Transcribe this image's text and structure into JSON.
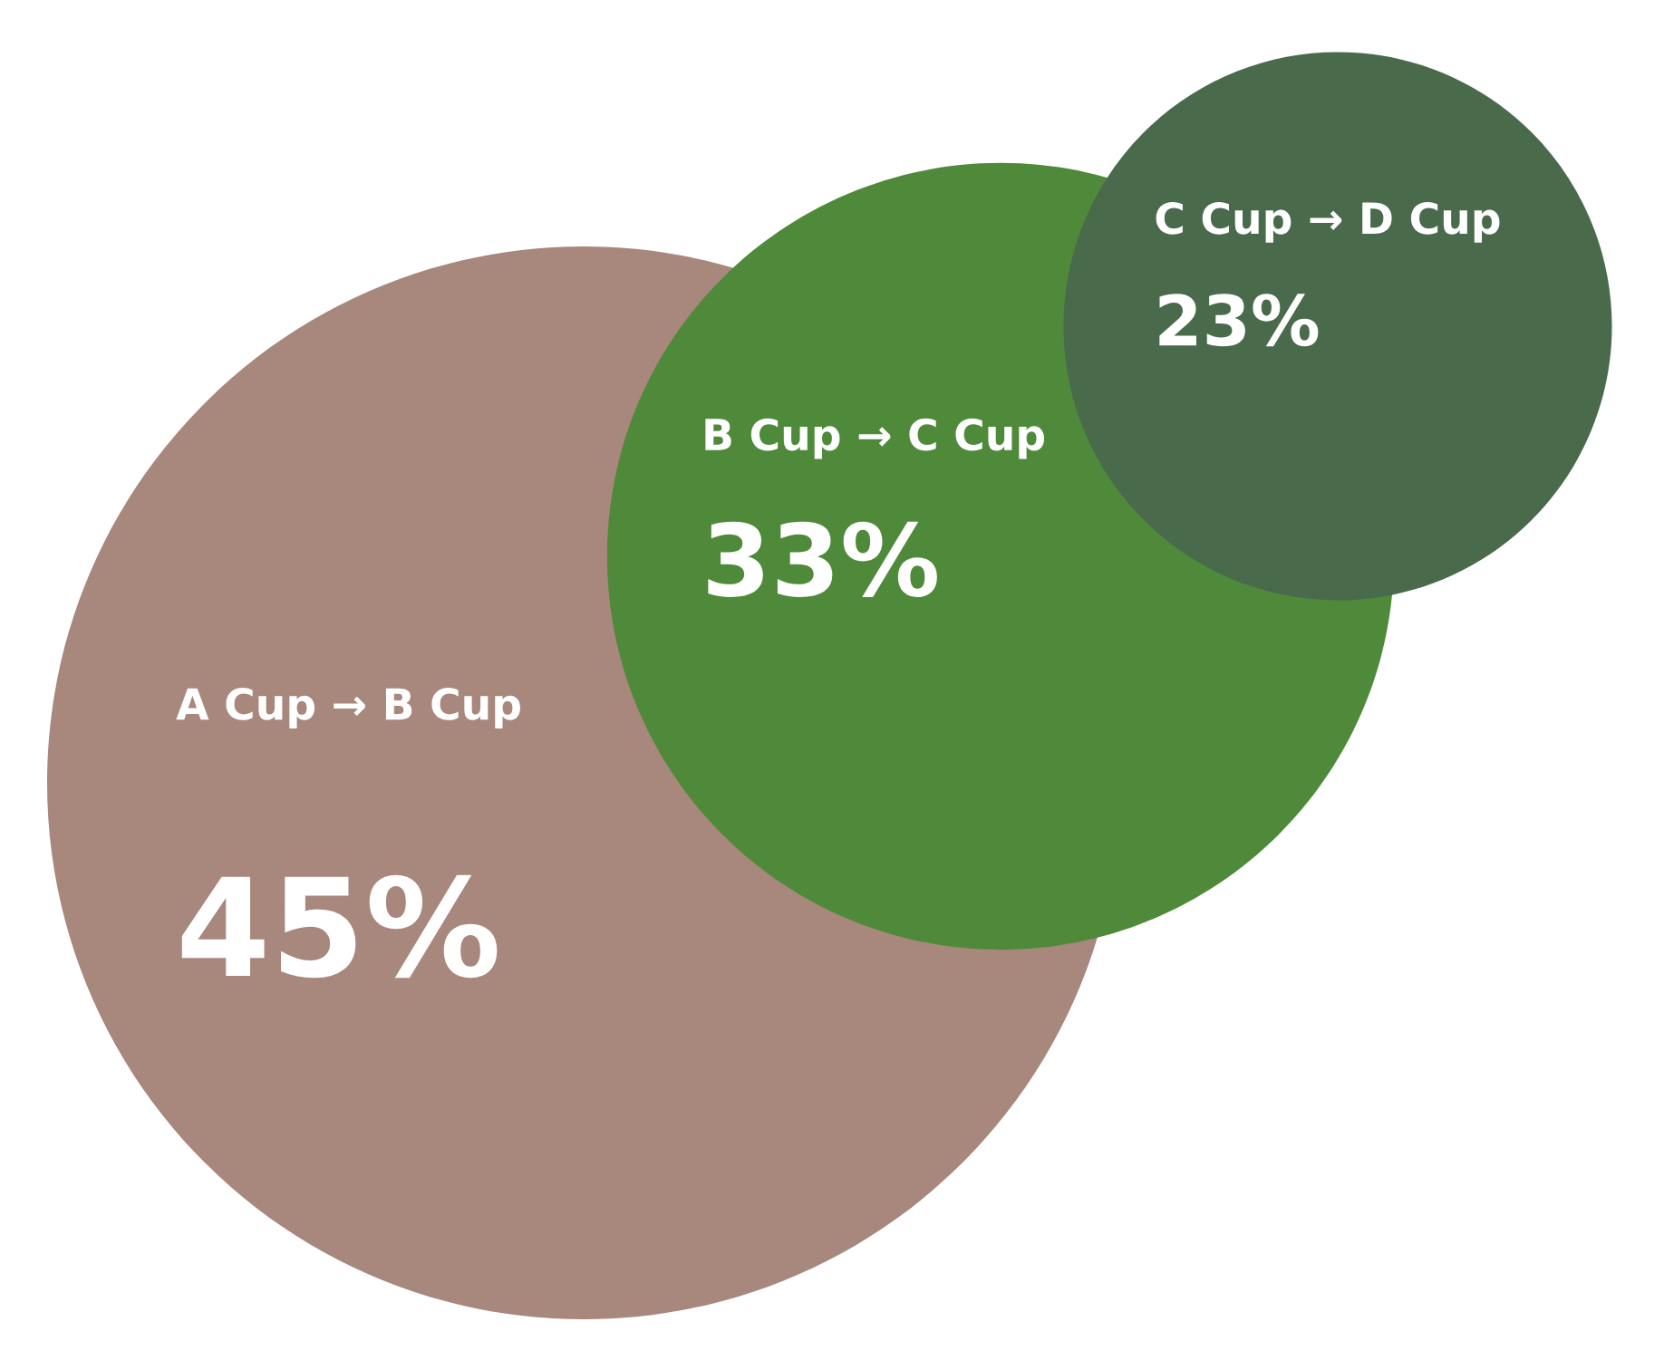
{
  "chart_data": {
    "type": "other",
    "categories": [
      "A Cup → B Cup",
      "B Cup → C Cup",
      "C Cup → D Cup"
    ],
    "values": [
      45,
      33,
      23
    ],
    "value_labels": [
      "45%",
      "33%",
      "23%"
    ],
    "colors": [
      "#a8877c",
      "#4f8a3a",
      "#4a6a4c"
    ]
  }
}
